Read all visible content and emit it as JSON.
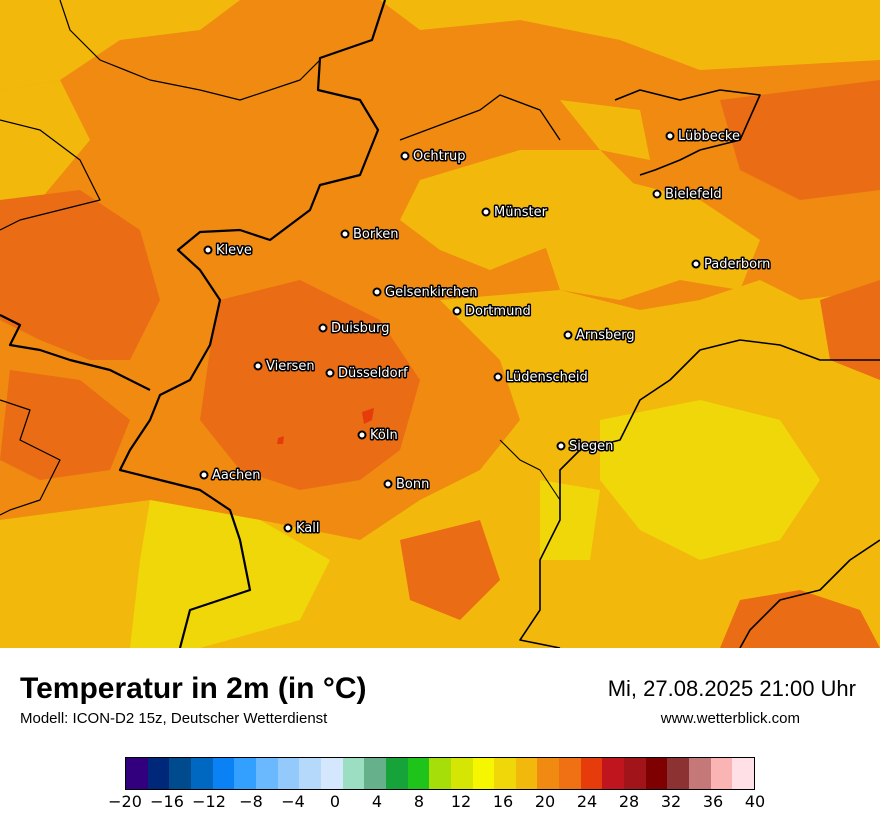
{
  "header": {
    "title": "Temperatur in 2m (in °C)",
    "model": "Modell: ICON-D2 15z, Deutscher Wetterdienst",
    "datetime": "Mi, 27.08.2025 21:00 Uhr",
    "website": "www.wetterblick.com"
  },
  "map": {
    "cities": [
      "Lübbecke",
      "Ochtrup",
      "Bielefeld",
      "Münster",
      "Borken",
      "Kleve",
      "Paderborn",
      "Gelsenkirchen",
      "Dortmund",
      "Duisburg",
      "Arnsberg",
      "Viersen",
      "Düsseldorf",
      "Lüdenscheid",
      "Köln",
      "Siegen",
      "Aachen",
      "Bonn",
      "Kall"
    ],
    "colors": {
      "base": "#f08a10",
      "warm_dark": "#ea6c14",
      "warm_yellow": "#f2b90c",
      "cool_yellow": "#efd70a",
      "hot_spot": "#e63c0c",
      "border": "#000000"
    }
  },
  "legend": {
    "tick_labels": [
      "−20",
      "−16",
      "−12",
      "−8",
      "−4",
      "0",
      "4",
      "8",
      "12",
      "16",
      "20",
      "24",
      "28",
      "32",
      "36",
      "40"
    ],
    "colors": [
      "#32007f",
      "#00287a",
      "#004b8d",
      "#0068c0",
      "#0a82f5",
      "#33a0ff",
      "#6ab9ff",
      "#93c9fb",
      "#b4d9fb",
      "#d4e7fd",
      "#9cdec2",
      "#66b08c",
      "#16a43a",
      "#1ec41a",
      "#a6de0a",
      "#d6e604",
      "#f6f600",
      "#efd70a",
      "#f2b90c",
      "#f08a10",
      "#f07014",
      "#e63c0c",
      "#c0141e",
      "#a0141a",
      "#7e0000",
      "#8c3232",
      "#c47878",
      "#fbb4b4",
      "#ffe0e6"
    ]
  }
}
